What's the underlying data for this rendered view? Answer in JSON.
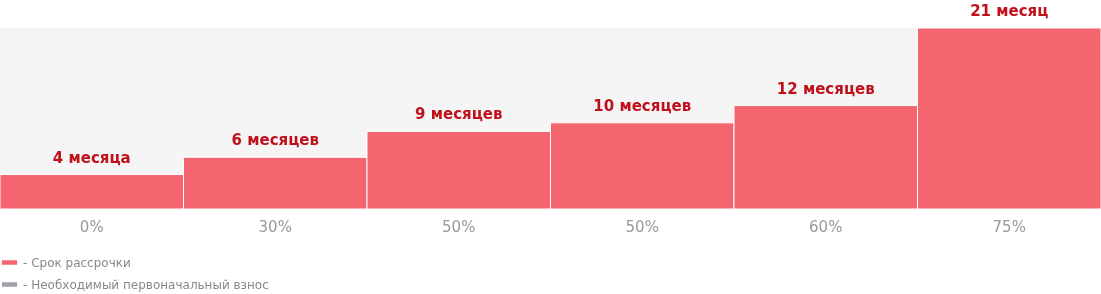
{
  "chart_data": {
    "type": "bar",
    "categories": [
      "0%",
      "30%",
      "50%",
      "50%",
      "60%",
      "75%"
    ],
    "xlabel": "- Необходимый первоначальный взнос",
    "series": [
      {
        "name": "- Срок рассрочки",
        "color": "#f4656f",
        "values": [
          4,
          6,
          9,
          10,
          12,
          21
        ],
        "value_labels": [
          "4 месяца",
          "6 месяцев",
          "9 месяцев",
          "10 месяцев",
          "12 месяцев",
          "21 месяц"
        ]
      }
    ],
    "legend": "bottom left"
  }
}
